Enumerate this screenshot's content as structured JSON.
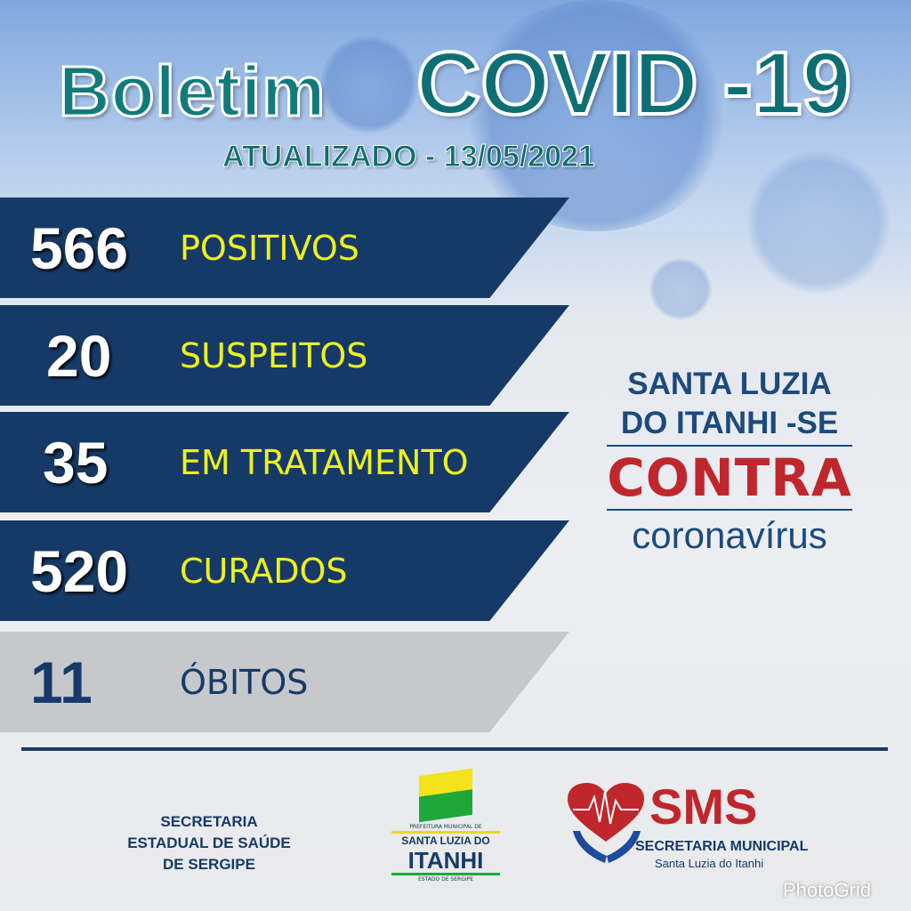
{
  "header": {
    "title_1": "Boletim",
    "title_2": "COVID -19",
    "updated": "ATUALIZADO - 13/05/2021"
  },
  "stats": [
    {
      "value": "566",
      "label": "POSITIVOS"
    },
    {
      "value": "20",
      "label": "SUSPEITOS"
    },
    {
      "value": "35",
      "label": "EM TRATAMENTO"
    },
    {
      "value": "520",
      "label": "CURADOS"
    },
    {
      "value": "11",
      "label": "ÓBITOS"
    }
  ],
  "slogan": {
    "line1": "SANTA LUZIA",
    "line2": "DO ITANHI -SE",
    "line3": "CONTRA",
    "line4": "coronavírus"
  },
  "footer": {
    "ses": [
      "SECRETARIA",
      "ESTADUAL DE SAÚDE",
      "DE SERGIPE"
    ],
    "prefeitura": {
      "top": "PREFEITURA MUNICIPAL DE",
      "name1": "SANTA LUZIA DO",
      "name2": "ITANHI",
      "bottom": "ESTADO DE SERGIPE"
    },
    "sms": {
      "title": "SMS",
      "subtitle": "SECRETARIA MUNICIPAL",
      "city": "Santa Luzia do Itanhi"
    },
    "watermark": "PhotoGrid"
  },
  "colors": {
    "navy": "#163a68",
    "yellow": "#eef21c",
    "teal": "#0d6f74",
    "red": "#c0272d",
    "gray": "#c6c8cc"
  }
}
